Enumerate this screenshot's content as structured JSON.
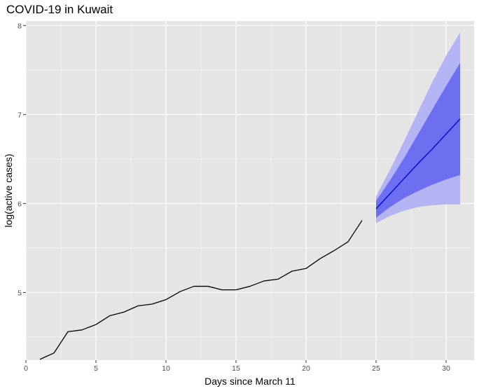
{
  "chart_data": {
    "type": "line",
    "title": "COVID-19 in Kuwait",
    "xlabel": "Days since March 11",
    "ylabel": "log(active cases)",
    "xlim": [
      0,
      32
    ],
    "ylim": [
      4.24,
      8.05
    ],
    "x_ticks": [
      0,
      5,
      10,
      15,
      20,
      25,
      30
    ],
    "y_ticks": [
      5,
      6,
      7,
      8
    ],
    "grid": true,
    "colors": {
      "panel": "#e5e5e5",
      "grid_major": "#ffffff",
      "observed": "#000000",
      "forecast": "#0000cc",
      "band_inner": "#6e6ef0",
      "band_outer": "#b4b4f5"
    },
    "series": [
      {
        "x": [
          1,
          2,
          3,
          4,
          5,
          6,
          7,
          8,
          9,
          10,
          11,
          12,
          13,
          14,
          15,
          16,
          17,
          18,
          19,
          20,
          21,
          22,
          23,
          24
        ],
        "values": [
          4.25,
          4.32,
          4.56,
          4.58,
          4.64,
          4.74,
          4.78,
          4.85,
          4.87,
          4.92,
          5.01,
          5.07,
          5.07,
          5.03,
          5.03,
          5.07,
          5.13,
          5.15,
          5.24,
          5.27,
          5.38,
          5.47,
          5.57,
          5.81
        ]
      },
      {
        "x": [
          25,
          26,
          27,
          28,
          29,
          30,
          31
        ],
        "values": [
          5.94,
          6.11,
          6.28,
          6.45,
          6.61,
          6.78,
          6.95
        ]
      }
    ],
    "bands": [
      {
        "x": [
          25,
          26,
          27,
          28,
          29,
          30,
          31
        ],
        "lower": [
          5.78,
          5.86,
          5.92,
          5.96,
          5.98,
          5.99,
          5.99
        ],
        "upper": [
          6.08,
          6.38,
          6.7,
          7.03,
          7.36,
          7.66,
          7.92
        ]
      },
      {
        "x": [
          25,
          26,
          27,
          28,
          29,
          30,
          31
        ],
        "lower": [
          5.84,
          5.96,
          6.06,
          6.14,
          6.21,
          6.27,
          6.32
        ],
        "upper": [
          6.03,
          6.26,
          6.51,
          6.78,
          7.05,
          7.32,
          7.58
        ]
      }
    ]
  }
}
